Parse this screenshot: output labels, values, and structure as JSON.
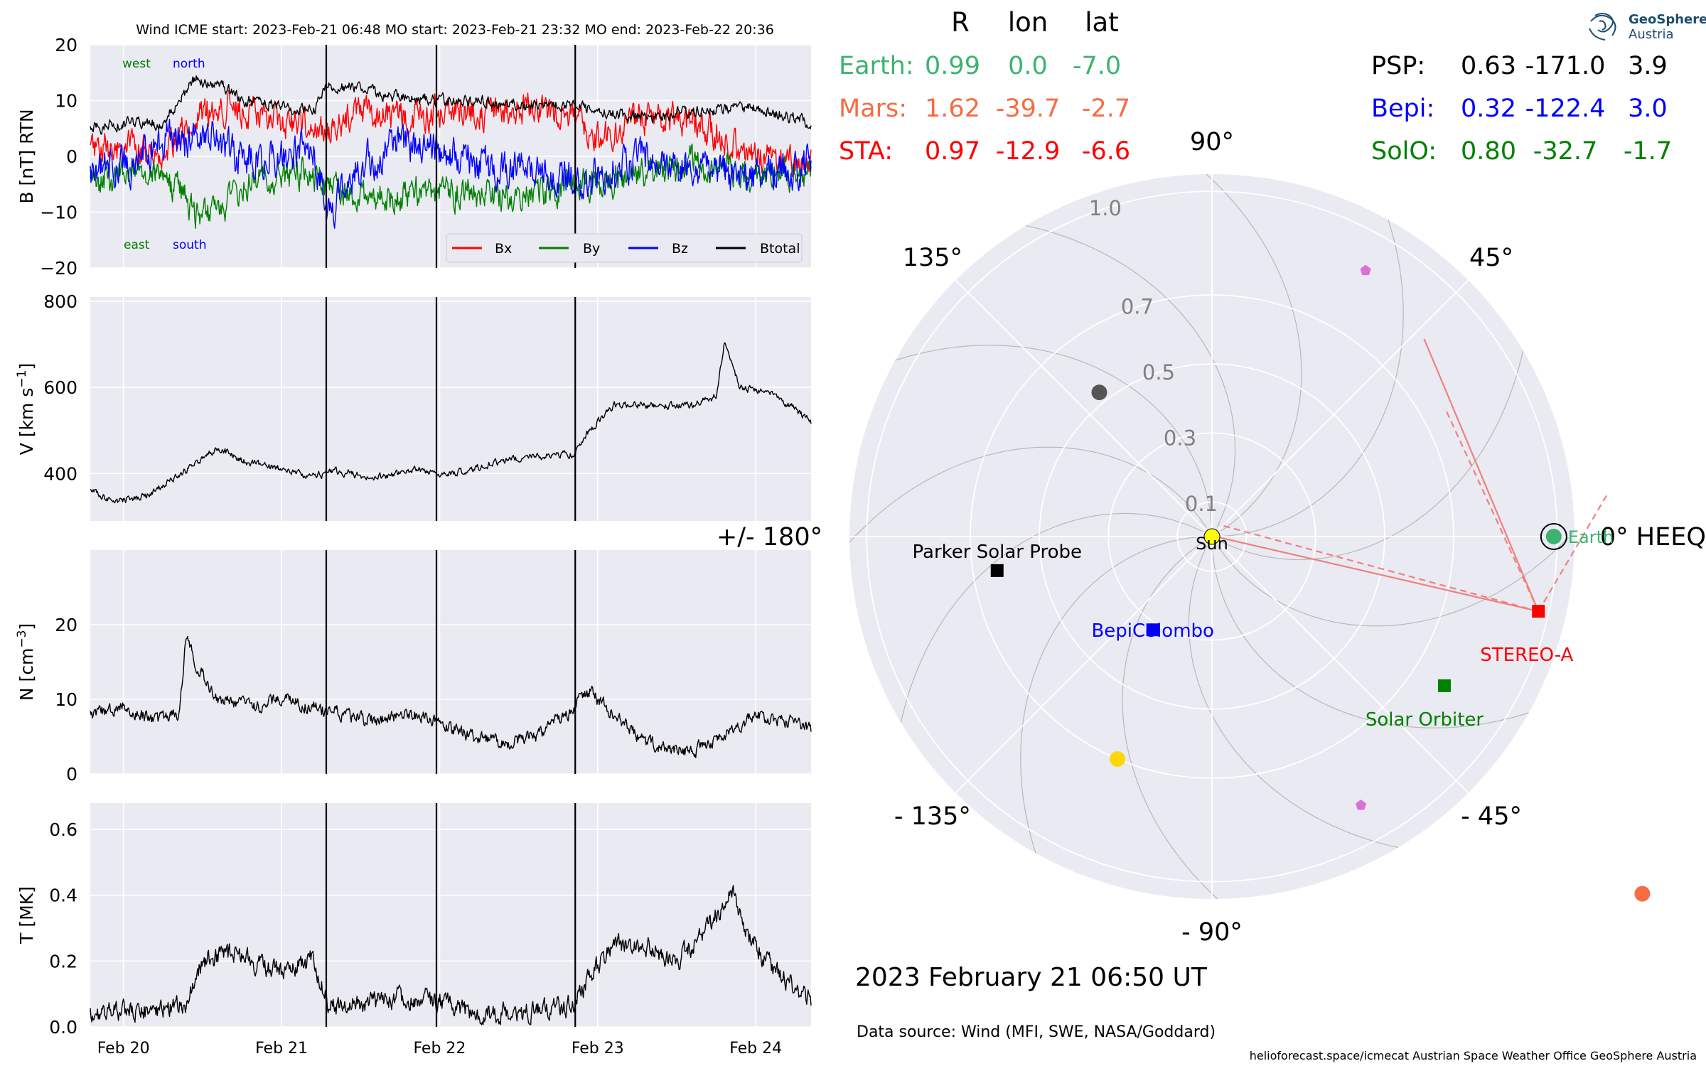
{
  "header": {
    "title": "Wind    ICME start: 2023-Feb-21 06:48   MO start: 2023-Feb-21 23:32   MO end: 2023-Feb-22 20:36"
  },
  "table": {
    "headers": [
      "R",
      "lon",
      "lat"
    ],
    "left": [
      {
        "name": "Earth:",
        "R": "0.99",
        "lon": "0.0",
        "lat": "-7.0",
        "color": "#3cb371"
      },
      {
        "name": "Mars:",
        "R": "1.62",
        "lon": "-39.7",
        "lat": "-2.7",
        "color": "#f46d43"
      },
      {
        "name": "STA:",
        "R": "0.97",
        "lon": "-12.9",
        "lat": "-6.6",
        "color": "#ff0000"
      }
    ],
    "right": [
      {
        "name": "PSP:",
        "R": "0.63",
        "lon": "-171.0",
        "lat": "3.9",
        "color": "#000000"
      },
      {
        "name": "Bepi:",
        "R": "0.32",
        "lon": "-122.4",
        "lat": "3.0",
        "color": "#0000ff"
      },
      {
        "name": "SolO:",
        "R": "0.80",
        "lon": "-32.7",
        "lat": "-1.7",
        "color": "#008000"
      }
    ]
  },
  "logo": {
    "line1": "GeoSphere",
    "line2": "Austria"
  },
  "footer": {
    "datetime": "2023 February 21  06:50 UT",
    "source": "Data source: Wind (MFI, SWE, NASA/Goddard)",
    "credits": "helioforecast.space/icmecat   Austrian Space Weather Office   GeoSphere Austria"
  },
  "chart_data": [
    {
      "type": "line",
      "panel": "B",
      "ylabel": "B [nT] RTN",
      "ylim": [
        -20,
        20
      ],
      "yticks": [
        "20",
        "10",
        "0",
        "−10",
        "−20"
      ],
      "ytick_values": [
        20,
        10,
        0,
        -10,
        -20
      ],
      "grid": true,
      "legend_placement": "lower-right",
      "annotations": [
        {
          "text": "west",
          "color": "#008000"
        },
        {
          "text": "north",
          "color": "#0000ff"
        },
        {
          "text": "east",
          "color": "#008000"
        },
        {
          "text": "south",
          "color": "#0000ff"
        }
      ],
      "x": [
        19.8,
        20.0,
        20.25,
        20.4,
        20.45,
        20.6,
        20.75,
        21.0,
        21.2,
        21.3,
        21.5,
        21.7,
        22.0,
        22.3,
        22.6,
        22.9,
        23.0,
        23.3,
        23.6,
        24.0,
        24.35
      ],
      "series": [
        {
          "name": "Bx",
          "color": "#ff0000",
          "values": [
            1,
            2,
            0,
            5,
            7,
            9,
            8,
            6,
            5,
            4,
            8,
            7,
            8,
            8,
            9,
            6,
            3,
            7,
            6,
            0,
            -2
          ]
        },
        {
          "name": "By",
          "color": "#008000",
          "values": [
            -5,
            -3,
            -4,
            -8,
            -10,
            -11,
            -5,
            -4,
            -3,
            -6,
            -8,
            -7,
            -6,
            -7,
            -7,
            -4,
            -5,
            -3,
            -1,
            -4,
            -3
          ]
        },
        {
          "name": "Bz",
          "color": "#0000ff",
          "values": [
            -3,
            -2,
            3,
            2,
            4,
            2,
            0,
            0,
            1,
            -10,
            -2,
            2,
            1,
            -2,
            -3,
            -4,
            -3,
            0,
            -3,
            -4,
            -1
          ]
        },
        {
          "name": "Btotal",
          "color": "#000000",
          "values": [
            5,
            6,
            6,
            12,
            14,
            13,
            10,
            9,
            8,
            13,
            12,
            11,
            10,
            10,
            9,
            9,
            8,
            7,
            8,
            9,
            6
          ]
        }
      ],
      "vlines": [
        21.283,
        21.98,
        22.858
      ]
    },
    {
      "type": "line",
      "panel": "V",
      "ylabel": "V [km s−1]",
      "ylim": [
        290,
        810
      ],
      "yticks": [
        "800",
        "600",
        "400"
      ],
      "ytick_values": [
        800,
        600,
        400
      ],
      "grid": true,
      "x": [
        19.8,
        19.95,
        20.1,
        20.2,
        20.4,
        20.6,
        20.75,
        21.0,
        21.2,
        21.35,
        21.6,
        21.9,
        22.0,
        22.2,
        22.4,
        22.6,
        22.85,
        22.95,
        23.1,
        23.4,
        23.6,
        23.75,
        23.8,
        23.9,
        24.1,
        24.35
      ],
      "series": [
        {
          "name": "",
          "color": "#000000",
          "values": [
            360,
            335,
            345,
            360,
            410,
            460,
            430,
            410,
            395,
            405,
            390,
            410,
            395,
            410,
            430,
            440,
            445,
            500,
            560,
            555,
            560,
            580,
            700,
            600,
            590,
            520
          ]
        }
      ],
      "vlines": [
        21.283,
        21.98,
        22.858
      ]
    },
    {
      "type": "line",
      "panel": "N",
      "ylabel": "N [cm−3]",
      "ylim": [
        0,
        30
      ],
      "yticks": [
        "20",
        "10",
        "0"
      ],
      "ytick_values": [
        20,
        10,
        0
      ],
      "grid": true,
      "x": [
        19.8,
        20.0,
        20.2,
        20.35,
        20.4,
        20.45,
        20.6,
        20.8,
        21.0,
        21.2,
        21.4,
        21.6,
        21.8,
        22.0,
        22.2,
        22.4,
        22.6,
        22.8,
        22.95,
        23.1,
        23.3,
        23.6,
        23.8,
        24.0,
        24.2,
        24.35
      ],
      "series": [
        {
          "name": "",
          "color": "#000000",
          "values": [
            8,
            9,
            7,
            8,
            19,
            15,
            10,
            9,
            10,
            9,
            8,
            7,
            8,
            7,
            5,
            4,
            5,
            8,
            11,
            8,
            4,
            3,
            5,
            8,
            7,
            6
          ]
        }
      ],
      "vlines": [
        21.283,
        21.98,
        22.858
      ]
    },
    {
      "type": "line",
      "panel": "T",
      "ylabel": "T [MK]",
      "ylim": [
        0,
        0.68
      ],
      "yticks": [
        "0.6",
        "0.4",
        "0.2",
        "0.0"
      ],
      "ytick_values": [
        0.6,
        0.4,
        0.2,
        0.0
      ],
      "grid": true,
      "xticklabels": [
        "Feb 20",
        "Feb 21",
        "Feb 22",
        "Feb 23",
        "Feb 24"
      ],
      "xtick_values": [
        20,
        21,
        22,
        23,
        24
      ],
      "xlim": [
        19.79,
        24.35
      ],
      "x": [
        19.8,
        20.0,
        20.2,
        20.4,
        20.5,
        20.7,
        20.9,
        21.0,
        21.2,
        21.3,
        21.5,
        21.8,
        22.0,
        22.2,
        22.5,
        22.85,
        22.95,
        23.1,
        23.3,
        23.5,
        23.7,
        23.85,
        23.95,
        24.1,
        24.35
      ],
      "series": [
        {
          "name": "",
          "color": "#000000",
          "values": [
            0.04,
            0.05,
            0.05,
            0.07,
            0.2,
            0.22,
            0.18,
            0.17,
            0.2,
            0.06,
            0.07,
            0.09,
            0.08,
            0.04,
            0.04,
            0.07,
            0.15,
            0.25,
            0.25,
            0.2,
            0.3,
            0.42,
            0.28,
            0.18,
            0.08
          ]
        }
      ],
      "vlines": [
        21.283,
        21.98,
        22.858
      ]
    },
    {
      "type": "scatter",
      "panel": "polar",
      "projection": "polar",
      "rmax": 1.05,
      "radial_ticks": [
        0.1,
        0.3,
        0.5,
        0.7,
        1.0
      ],
      "radial_tick_labels": [
        "0.1",
        "0.3",
        "0.5",
        "0.7",
        "1.0"
      ],
      "angle_labels": [
        {
          "deg": 0,
          "text": "0° HEEQ"
        },
        {
          "deg": 45,
          "text": "45°"
        },
        {
          "deg": 90,
          "text": "90°"
        },
        {
          "deg": 135,
          "text": "135°"
        },
        {
          "deg": 180,
          "text": "+/- 180°"
        },
        {
          "deg": -135,
          "text": "- 135°"
        },
        {
          "deg": -90,
          "text": "- 90°"
        },
        {
          "deg": -45,
          "text": "- 45°"
        }
      ],
      "grid": true,
      "objects": [
        {
          "name": "Sun",
          "label": "Sun",
          "r": 0.0,
          "lon": 0,
          "marker": "circle",
          "color": "#ffff00"
        },
        {
          "name": "Earth",
          "label": "Earth",
          "r": 0.99,
          "lon": 0.0,
          "marker": "circle",
          "color": "#3cb371"
        },
        {
          "name": "Mars",
          "label": "",
          "r": 1.62,
          "lon": -39.7,
          "marker": "circle",
          "color": "#f46d43"
        },
        {
          "name": "STEREO-A",
          "label": "STEREO-A",
          "r": 0.97,
          "lon": -12.9,
          "marker": "square",
          "color": "#ff0000"
        },
        {
          "name": "Parker Solar Probe",
          "label": "Parker Solar Probe",
          "r": 0.63,
          "lon": -171.0,
          "marker": "square",
          "color": "#000000"
        },
        {
          "name": "BepiColombo",
          "label": "BepiColombo",
          "r": 0.32,
          "lon": -122.4,
          "marker": "square",
          "color": "#0000ff"
        },
        {
          "name": "Solar Orbiter",
          "label": "Solar Orbiter",
          "r": 0.8,
          "lon": -32.7,
          "marker": "square",
          "color": "#008000"
        },
        {
          "name": "",
          "label": "",
          "r": 0.53,
          "lon": 128,
          "marker": "circle",
          "color": "#555555"
        },
        {
          "name": "",
          "label": "",
          "r": 0.7,
          "lon": -113,
          "marker": "circle",
          "color": "#ffd700"
        },
        {
          "name": "",
          "label": "",
          "r": 0.89,
          "lon": 60,
          "marker": "pentagon",
          "color": "#da70d6"
        },
        {
          "name": "",
          "label": "",
          "r": 0.89,
          "lon": -61,
          "marker": "pentagon",
          "color": "#da70d6"
        }
      ]
    }
  ]
}
